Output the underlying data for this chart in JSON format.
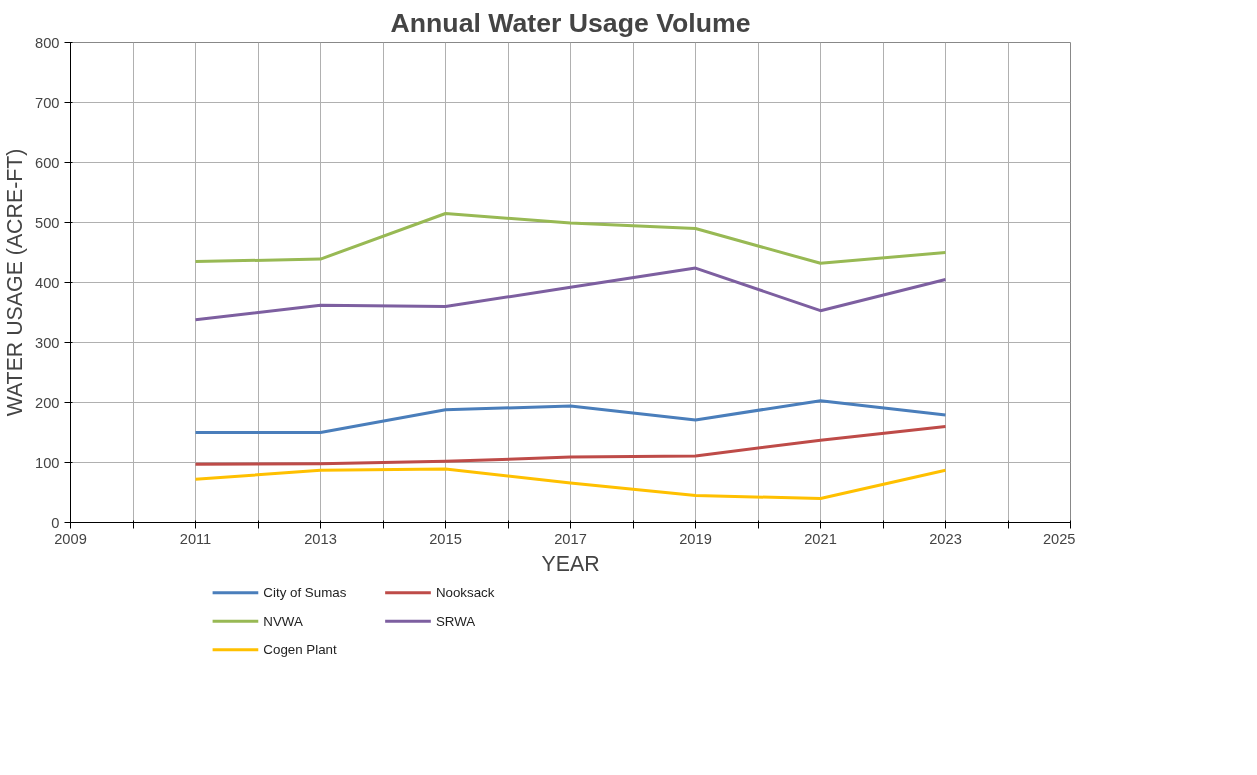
{
  "chart_data": {
    "type": "line",
    "title": "Annual Water Usage Volume",
    "xlabel": "YEAR",
    "ylabel": "WATER USAGE (ACRE-FT)",
    "x": [
      2011,
      2013,
      2015,
      2017,
      2019,
      2021,
      2023
    ],
    "series": [
      {
        "name": "City of Sumas",
        "color": "#4a7ebb",
        "values": [
          150,
          150,
          188,
          194,
          171,
          203,
          179
        ]
      },
      {
        "name": "Nooksack",
        "color": "#be4b48",
        "values": [
          97,
          98,
          102,
          109,
          111,
          137,
          160
        ]
      },
      {
        "name": "NVWA",
        "color": "#98b954",
        "values": [
          435,
          439,
          515,
          499,
          490,
          432,
          450
        ]
      },
      {
        "name": "SRWA",
        "color": "#7d5fa0",
        "values": [
          338,
          362,
          360,
          392,
          424,
          353,
          405
        ]
      },
      {
        "name": "Cogen Plant",
        "color": "#ffc000",
        "values": [
          72,
          87,
          89,
          66,
          45,
          40,
          87
        ]
      }
    ],
    "xlim": [
      2009,
      2025
    ],
    "ylim": [
      0,
      800
    ],
    "xticks": [
      2009,
      {
        "value": 2010,
        "label": null
      },
      2011,
      {
        "value": 2012,
        "label": null
      },
      2013,
      {
        "value": 2014,
        "label": null
      },
      2015,
      {
        "value": 2016,
        "label": null
      },
      2017,
      {
        "value": 2018,
        "label": null
      },
      2019,
      {
        "value": 2020,
        "label": null
      },
      2021,
      {
        "value": 2022,
        "label": null
      },
      2023,
      {
        "value": 2024,
        "label": null
      },
      2025
    ],
    "yticks": [
      0,
      100,
      200,
      300,
      400,
      500,
      600,
      700,
      800
    ],
    "grid": true,
    "legend": "bottom",
    "marker": "none",
    "line_style": "solid"
  }
}
